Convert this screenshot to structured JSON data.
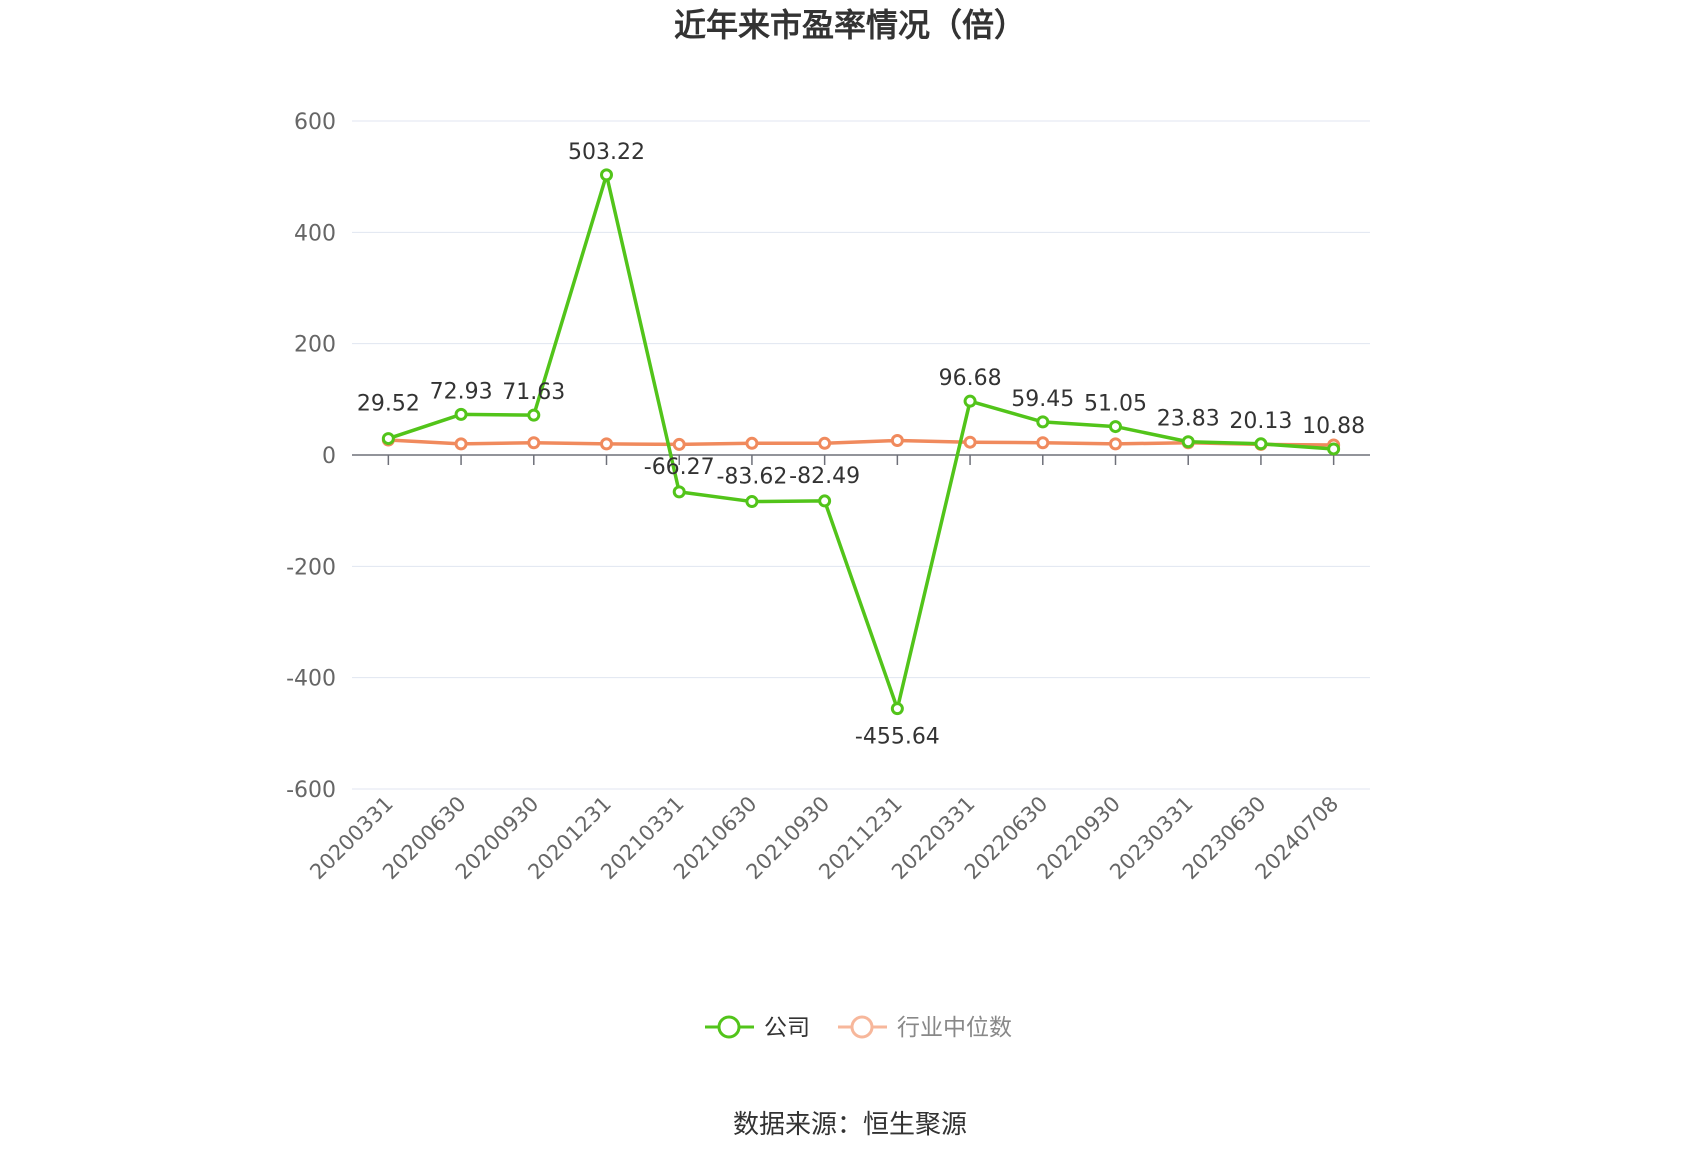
{
  "chart_data": {
    "type": "line",
    "title": "近年来市盈率情况（倍）",
    "categories": [
      "20200331",
      "20200630",
      "20200930",
      "20201231",
      "20210331",
      "20210630",
      "20210930",
      "20211231",
      "20220331",
      "20220630",
      "20220930",
      "20230331",
      "20230630",
      "20240708"
    ],
    "series": [
      {
        "name": "公司",
        "color": "#52c41a",
        "values": [
          29.52,
          72.93,
          71.63,
          503.22,
          -66.27,
          -83.62,
          -82.49,
          -455.64,
          96.68,
          59.45,
          51.05,
          23.83,
          20.13,
          10.88
        ],
        "labels": [
          "29.52",
          "72.93",
          "71.63",
          "503.22",
          "-66.27",
          "-83.62",
          "-82.49",
          "-455.64",
          "96.68",
          "59.45",
          "51.05",
          "23.83",
          "20.13",
          "10.88"
        ]
      },
      {
        "name": "行业中位数",
        "color": "#f08a5d",
        "values": [
          27,
          20,
          22,
          20,
          19,
          21,
          21,
          26,
          23,
          22,
          20,
          22,
          19,
          18
        ]
      }
    ],
    "ylim": [
      -600,
      600
    ],
    "yticks": [
      600,
      400,
      200,
      0,
      -200,
      -400,
      -600
    ],
    "grid": true,
    "legend_position": "bottom"
  },
  "source_text": "数据来源：恒生聚源"
}
